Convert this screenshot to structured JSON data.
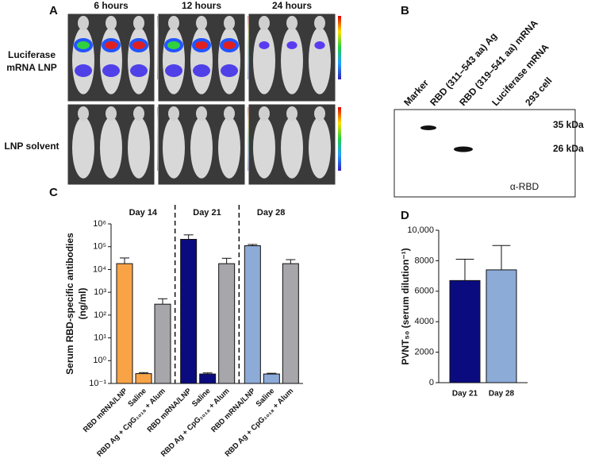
{
  "panel_labels": [
    "A",
    "B",
    "C",
    "D"
  ],
  "imaging": {
    "columns": [
      "6 hours",
      "12 hours",
      "24 hours"
    ],
    "rows": [
      [
        "Luciferase",
        "mRNA LNP"
      ],
      [
        "LNP solvent"
      ]
    ]
  },
  "blot": {
    "lanes": [
      "Marker",
      "RBD (311–543 aa) Ag",
      "RBD (319–541 aa) mRNA",
      "Luciferase mRNA",
      "293 cell"
    ],
    "markers": [
      "35 kDa",
      "26 kDa"
    ],
    "antibody": "α-RBD"
  },
  "chart_data": [
    {
      "type": "bar",
      "log": true,
      "ylabel": [
        "Serum RBD-specific antibodies",
        "(ng/ml)"
      ],
      "categories": [
        "RBD mRNA/LNP",
        "Saline",
        "RBD Ag + CpG₁₀₁₈ + Alum"
      ],
      "series": [
        {
          "name": "Day 14",
          "colors": [
            "#F9A347",
            "#F9A347",
            "#A6A6AB"
          ],
          "values": [
            18000,
            0.27,
            300
          ],
          "errors": [
            14000,
            0.03,
            220
          ]
        },
        {
          "name": "Day 21",
          "colors": [
            "#0B0B80",
            "#0B0B80",
            "#A6A6AB"
          ],
          "values": [
            210000,
            0.26,
            18000
          ],
          "errors": [
            120000,
            0.03,
            13000
          ]
        },
        {
          "name": "Day 28",
          "colors": [
            "#8DABD7",
            "#8DABD7",
            "#A6A6AB"
          ],
          "values": [
            110000,
            0.26,
            18000
          ],
          "errors": [
            15000,
            0.02,
            9000
          ]
        }
      ],
      "ylim": [
        0.1,
        1000000
      ],
      "yticks": [
        {
          "value": 0.1,
          "label": "10⁻¹"
        },
        {
          "value": 1,
          "label": "10⁰"
        },
        {
          "value": 10,
          "label": "10¹"
        },
        {
          "value": 100,
          "label": "10²"
        },
        {
          "value": 1000,
          "label": "10³"
        },
        {
          "value": 10000,
          "label": "10⁴"
        },
        {
          "value": 100000,
          "label": "10⁵"
        },
        {
          "value": 1000000,
          "label": "10⁶"
        }
      ]
    },
    {
      "type": "bar",
      "log": false,
      "ylabel": [
        "PVNT₅₀ (serum dilution⁻¹)"
      ],
      "categories": [
        "Day 21",
        "Day 28"
      ],
      "colors": [
        "#0B0B80",
        "#8DABD7"
      ],
      "values": [
        6700,
        7400
      ],
      "errors": [
        1400,
        1600
      ],
      "ylim": [
        0,
        10000
      ],
      "yticks": [
        0,
        2000,
        4000,
        6000,
        8000,
        {
          "value": 10000,
          "label": "10,000"
        }
      ]
    }
  ]
}
